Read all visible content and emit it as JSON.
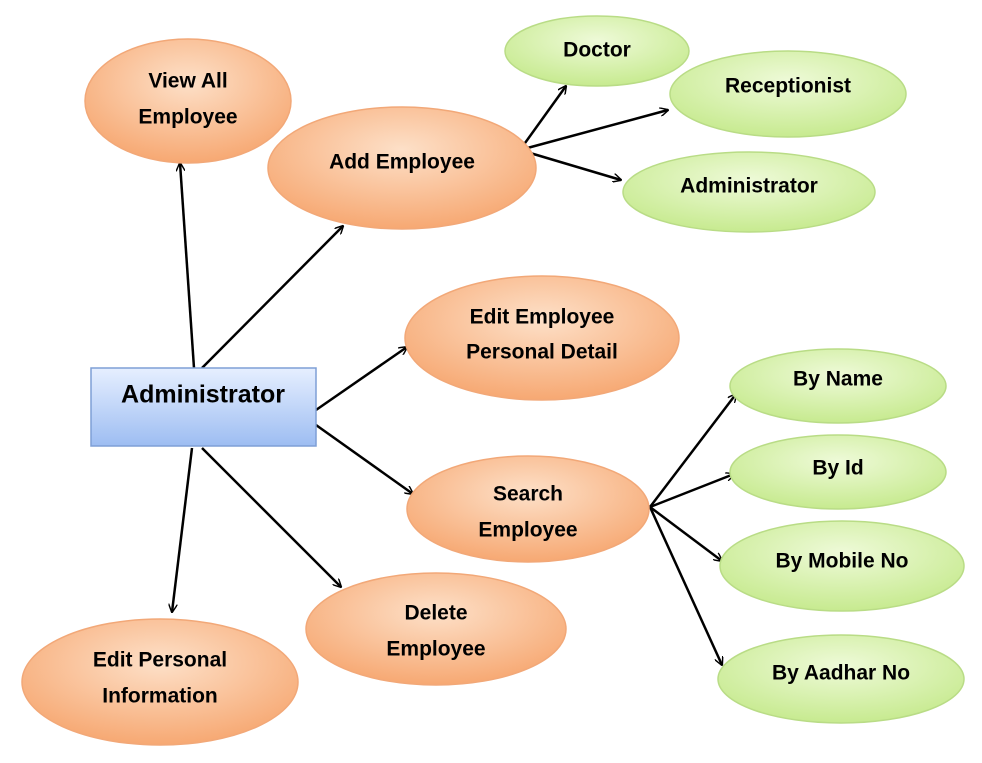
{
  "root": {
    "label": "Administrator"
  },
  "functions": {
    "view_all_employee": [
      "View All",
      "Employee"
    ],
    "add_employee": [
      "Add Employee"
    ],
    "edit_employee_personal_detail": [
      "Edit Employee",
      "Personal Detail"
    ],
    "search_employee": [
      "Search",
      "Employee"
    ],
    "delete_employee": [
      "Delete",
      "Employee"
    ],
    "edit_personal_information": [
      "Edit Personal",
      "Information"
    ]
  },
  "add_employee_roles": {
    "doctor": "Doctor",
    "receptionist": "Receptionist",
    "administrator": "Administrator"
  },
  "search_options": {
    "by_name": "By Name",
    "by_id": "By Id",
    "by_mobile_no": "By Mobile No",
    "by_aadhar_no": "By Aadhar No"
  },
  "colors": {
    "orange_fill_light": "#fde0c8",
    "orange_fill_dark": "#f6a46c",
    "orange_stroke": "#f2a878",
    "green_fill_light": "#eefad8",
    "green_fill_dark": "#c4e98a",
    "green_stroke": "#b9dc86",
    "box_fill_light": "#e6efff",
    "box_fill_dark": "#9dbdf2",
    "box_stroke": "#7e9fd6",
    "arrow": "#000000"
  }
}
